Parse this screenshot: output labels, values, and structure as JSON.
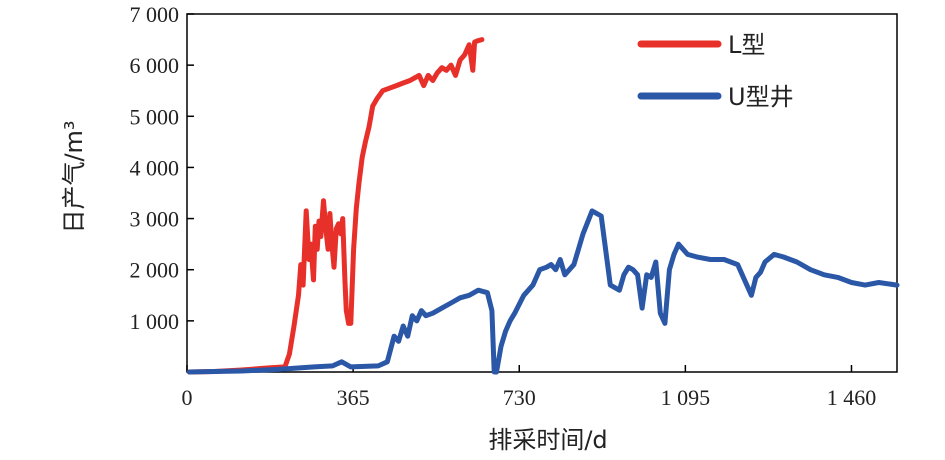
{
  "chart_data": {
    "type": "line",
    "xlabel": "排采时间/d",
    "ylabel": "日产气/m³",
    "xlim": [
      0,
      1560
    ],
    "ylim": [
      0,
      7000
    ],
    "xticks": [
      0,
      365,
      730,
      1095,
      1460
    ],
    "xtick_labels": [
      "0",
      "365",
      "730",
      "1 095",
      "1 460"
    ],
    "yticks": [
      1000,
      2000,
      3000,
      4000,
      5000,
      6000,
      7000
    ],
    "ytick_labels": [
      "1 000",
      "2 000",
      "3 000",
      "4 000",
      "5 000",
      "6 000",
      "7 000"
    ],
    "legend_position": "top-right",
    "grid": false,
    "series": [
      {
        "name": "L型",
        "color": "#e8302a",
        "x": [
          5,
          60,
          120,
          180,
          215,
          225,
          235,
          245,
          250,
          255,
          262,
          268,
          272,
          278,
          282,
          286,
          290,
          294,
          300,
          305,
          310,
          314,
          318,
          323,
          328,
          333,
          338,
          342,
          347,
          350,
          355,
          360,
          366,
          372,
          378,
          385,
          392,
          400,
          408,
          418,
          430,
          445,
          460,
          475,
          490,
          500,
          510,
          520,
          530,
          540,
          550,
          560,
          570,
          580,
          590,
          600,
          610,
          620,
          628,
          632,
          640,
          648
        ],
        "y": [
          0,
          10,
          40,
          80,
          100,
          350,
          900,
          1500,
          2100,
          1700,
          3150,
          2200,
          2500,
          1800,
          2850,
          2400,
          2950,
          2650,
          3350,
          2800,
          2400,
          3100,
          2550,
          2050,
          2800,
          2900,
          2700,
          3000,
          1800,
          1200,
          950,
          950,
          2400,
          3200,
          3700,
          4200,
          4500,
          4800,
          5200,
          5350,
          5500,
          5550,
          5600,
          5650,
          5700,
          5750,
          5800,
          5600,
          5800,
          5700,
          5850,
          5950,
          5900,
          6000,
          5800,
          6100,
          6200,
          6400,
          5900,
          6450,
          6480,
          6500
        ]
      },
      {
        "name": "U型井",
        "color": "#2b57a7",
        "x": [
          5,
          60,
          120,
          200,
          280,
          320,
          340,
          360,
          420,
          440,
          455,
          465,
          475,
          485,
          495,
          505,
          515,
          525,
          540,
          560,
          580,
          600,
          620,
          640,
          660,
          670,
          675,
          680,
          690,
          700,
          710,
          720,
          740,
          760,
          775,
          790,
          800,
          810,
          820,
          830,
          850,
          870,
          890,
          910,
          930,
          950,
          960,
          970,
          980,
          990,
          1000,
          1010,
          1020,
          1030,
          1040,
          1050,
          1060,
          1070,
          1080,
          1090,
          1100,
          1120,
          1150,
          1180,
          1210,
          1240,
          1250,
          1260,
          1270,
          1290,
          1310,
          1340,
          1370,
          1400,
          1430,
          1460,
          1490,
          1520,
          1560
        ],
        "y": [
          0,
          10,
          20,
          50,
          100,
          120,
          200,
          100,
          120,
          200,
          700,
          600,
          900,
          700,
          1100,
          1000,
          1200,
          1100,
          1150,
          1250,
          1350,
          1450,
          1500,
          1600,
          1550,
          1200,
          0,
          0,
          500,
          800,
          1000,
          1150,
          1500,
          1700,
          2000,
          2050,
          2100,
          2000,
          2200,
          1900,
          2100,
          2700,
          3150,
          3050,
          1700,
          1600,
          1900,
          2050,
          2000,
          1900,
          1250,
          1900,
          1850,
          2150,
          1150,
          950,
          2000,
          2300,
          2500,
          2400,
          2300,
          2250,
          2200,
          2200,
          2100,
          1500,
          1850,
          1950,
          2150,
          2300,
          2250,
          2150,
          2000,
          1900,
          1850,
          1750,
          1700,
          1750,
          1700
        ]
      }
    ]
  }
}
